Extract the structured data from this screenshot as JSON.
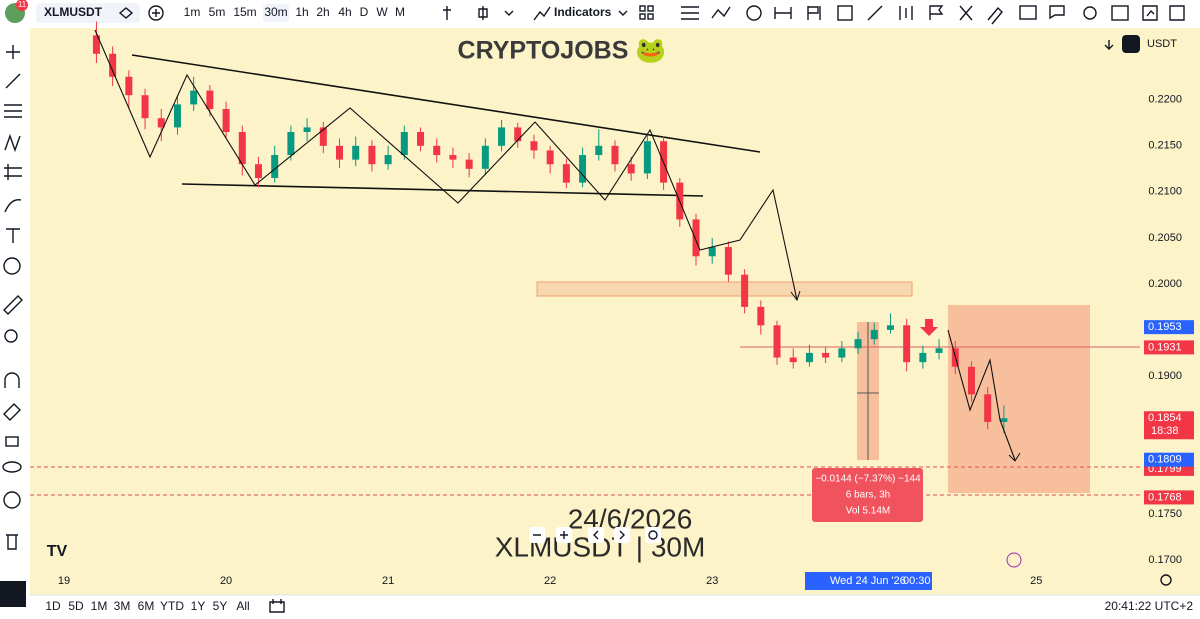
{
  "ui": {
    "symbol": "XLMUSDT",
    "badge": "11",
    "timeframes": [
      "1m",
      "5m",
      "15m",
      "30m",
      "1h",
      "2h",
      "4h",
      "D",
      "W",
      "M"
    ],
    "indicators": "Indicators",
    "currency": "USDT",
    "ranges": [
      "1D",
      "5D",
      "1M",
      "3M",
      "6M",
      "YTD",
      "1Y",
      "5Y",
      "All"
    ],
    "clock": "20:41:22 UTC+2",
    "brand": "CRYPTOJOBS 🐸",
    "watermark_date": "24/6/2026",
    "watermark_symbol": "XLMUSDT | 30M",
    "measure": [
      "−0.0144 (−7.37%) −144",
      "6 bars, 3h",
      "Vol 5.14M"
    ],
    "crosshair_date": "Wed 24 Jun '26",
    "crosshair_time": "00:30",
    "countdown": "18:38"
  },
  "chart_data": {
    "type": "candlestick",
    "up_color": "#089981",
    "down_color": "#f23645",
    "x": [
      19.2,
      19.3,
      19.4,
      19.5,
      19.6,
      19.7,
      19.8,
      19.9,
      20.0,
      20.1,
      20.2,
      20.3,
      20.4,
      20.5,
      20.6,
      20.7,
      20.8,
      20.9,
      21.0,
      21.1,
      21.2,
      21.3,
      21.4,
      21.5,
      21.6,
      21.7,
      21.8,
      21.9,
      22.0,
      22.1,
      22.2,
      22.3,
      22.4,
      22.5,
      22.6,
      22.7,
      22.8,
      22.9,
      23.0,
      23.1,
      23.2,
      23.3,
      23.4,
      23.5,
      23.6,
      23.7,
      23.8,
      23.9,
      24.0,
      24.1,
      24.2,
      24.3,
      24.4,
      24.5,
      24.6,
      24.7,
      24.8
    ],
    "open": [
      0.227,
      0.225,
      0.2225,
      0.2205,
      0.218,
      0.217,
      0.2195,
      0.221,
      0.219,
      0.2165,
      0.213,
      0.2115,
      0.214,
      0.2165,
      0.217,
      0.215,
      0.2135,
      0.215,
      0.213,
      0.214,
      0.2165,
      0.215,
      0.214,
      0.2135,
      0.2125,
      0.215,
      0.217,
      0.2155,
      0.2145,
      0.213,
      0.211,
      0.214,
      0.215,
      0.213,
      0.212,
      0.2155,
      0.211,
      0.207,
      0.203,
      0.204,
      0.201,
      0.1975,
      0.1955,
      0.192,
      0.1915,
      0.1925,
      0.192,
      0.193,
      0.194,
      0.195,
      0.1955,
      0.1915,
      0.1925,
      0.193,
      0.191,
      0.188,
      0.185
    ],
    "high": [
      0.2285,
      0.2258,
      0.2232,
      0.2212,
      0.219,
      0.2205,
      0.2225,
      0.2216,
      0.2198,
      0.2172,
      0.2138,
      0.215,
      0.2172,
      0.218,
      0.2176,
      0.2158,
      0.216,
      0.2156,
      0.215,
      0.2172,
      0.217,
      0.2158,
      0.2148,
      0.2142,
      0.2158,
      0.2178,
      0.2175,
      0.2162,
      0.215,
      0.2136,
      0.2148,
      0.2168,
      0.2156,
      0.2138,
      0.2162,
      0.216,
      0.2115,
      0.2076,
      0.205,
      0.2046,
      0.2016,
      0.1982,
      0.196,
      0.193,
      0.1934,
      0.1932,
      0.1938,
      0.1948,
      0.1958,
      0.1968,
      0.1962,
      0.1933,
      0.194,
      0.1938,
      0.1916,
      0.1888,
      0.1868
    ],
    "low": [
      0.224,
      0.2215,
      0.219,
      0.2168,
      0.2155,
      0.2162,
      0.2188,
      0.2182,
      0.2158,
      0.2118,
      0.2105,
      0.211,
      0.2134,
      0.2155,
      0.2142,
      0.2126,
      0.2128,
      0.2122,
      0.2124,
      0.2135,
      0.2144,
      0.2132,
      0.2126,
      0.2116,
      0.2118,
      0.2144,
      0.2148,
      0.2136,
      0.212,
      0.2104,
      0.2105,
      0.2134,
      0.2122,
      0.2112,
      0.2114,
      0.2102,
      0.2062,
      0.202,
      0.2022,
      0.2002,
      0.1968,
      0.1945,
      0.1912,
      0.1908,
      0.191,
      0.1914,
      0.1915,
      0.1924,
      0.1934,
      0.1946,
      0.1905,
      0.1908,
      0.1918,
      0.1902,
      0.1872,
      0.1842,
      0.1838
    ],
    "close": [
      0.225,
      0.2225,
      0.2205,
      0.218,
      0.217,
      0.2195,
      0.221,
      0.219,
      0.2165,
      0.213,
      0.2115,
      0.214,
      0.2165,
      0.217,
      0.215,
      0.2135,
      0.215,
      0.213,
      0.214,
      0.2165,
      0.215,
      0.214,
      0.2135,
      0.2125,
      0.215,
      0.217,
      0.2155,
      0.2145,
      0.213,
      0.211,
      0.214,
      0.215,
      0.213,
      0.212,
      0.2155,
      0.211,
      0.207,
      0.203,
      0.204,
      0.201,
      0.1975,
      0.1955,
      0.192,
      0.1915,
      0.1925,
      0.192,
      0.193,
      0.194,
      0.195,
      0.1955,
      0.1915,
      0.1925,
      0.193,
      0.191,
      0.188,
      0.185,
      0.1854
    ],
    "xlim": [
      18.79,
      25.64
    ],
    "xticks": [
      19,
      20,
      21,
      22,
      23,
      25
    ],
    "ylim": [
      0.1662,
      0.2278
    ],
    "yticks": [
      {
        "value": 0.22,
        "label": "0.2200"
      },
      {
        "value": 0.215,
        "label": "0.2150"
      },
      {
        "value": 0.21,
        "label": "0.2100"
      },
      {
        "value": 0.205,
        "label": "0.2050"
      },
      {
        "value": 0.2,
        "label": "0.2000"
      },
      {
        "value": 0.19,
        "label": "0.1900"
      },
      {
        "value": 0.175,
        "label": "0.1750"
      },
      {
        "value": 0.17,
        "label": "0.1700"
      }
    ],
    "price_tags": [
      {
        "value": 0.1953,
        "color": "#2962ff"
      },
      {
        "value": 0.1931,
        "color": "#f23645"
      },
      {
        "value": 0.1799,
        "color": "#f23645"
      },
      {
        "value": 0.1809,
        "color": "#2962ff"
      },
      {
        "value": 0.1768,
        "color": "#f23645"
      },
      {
        "value": 0.1854,
        "color": "#f23645"
      }
    ]
  }
}
